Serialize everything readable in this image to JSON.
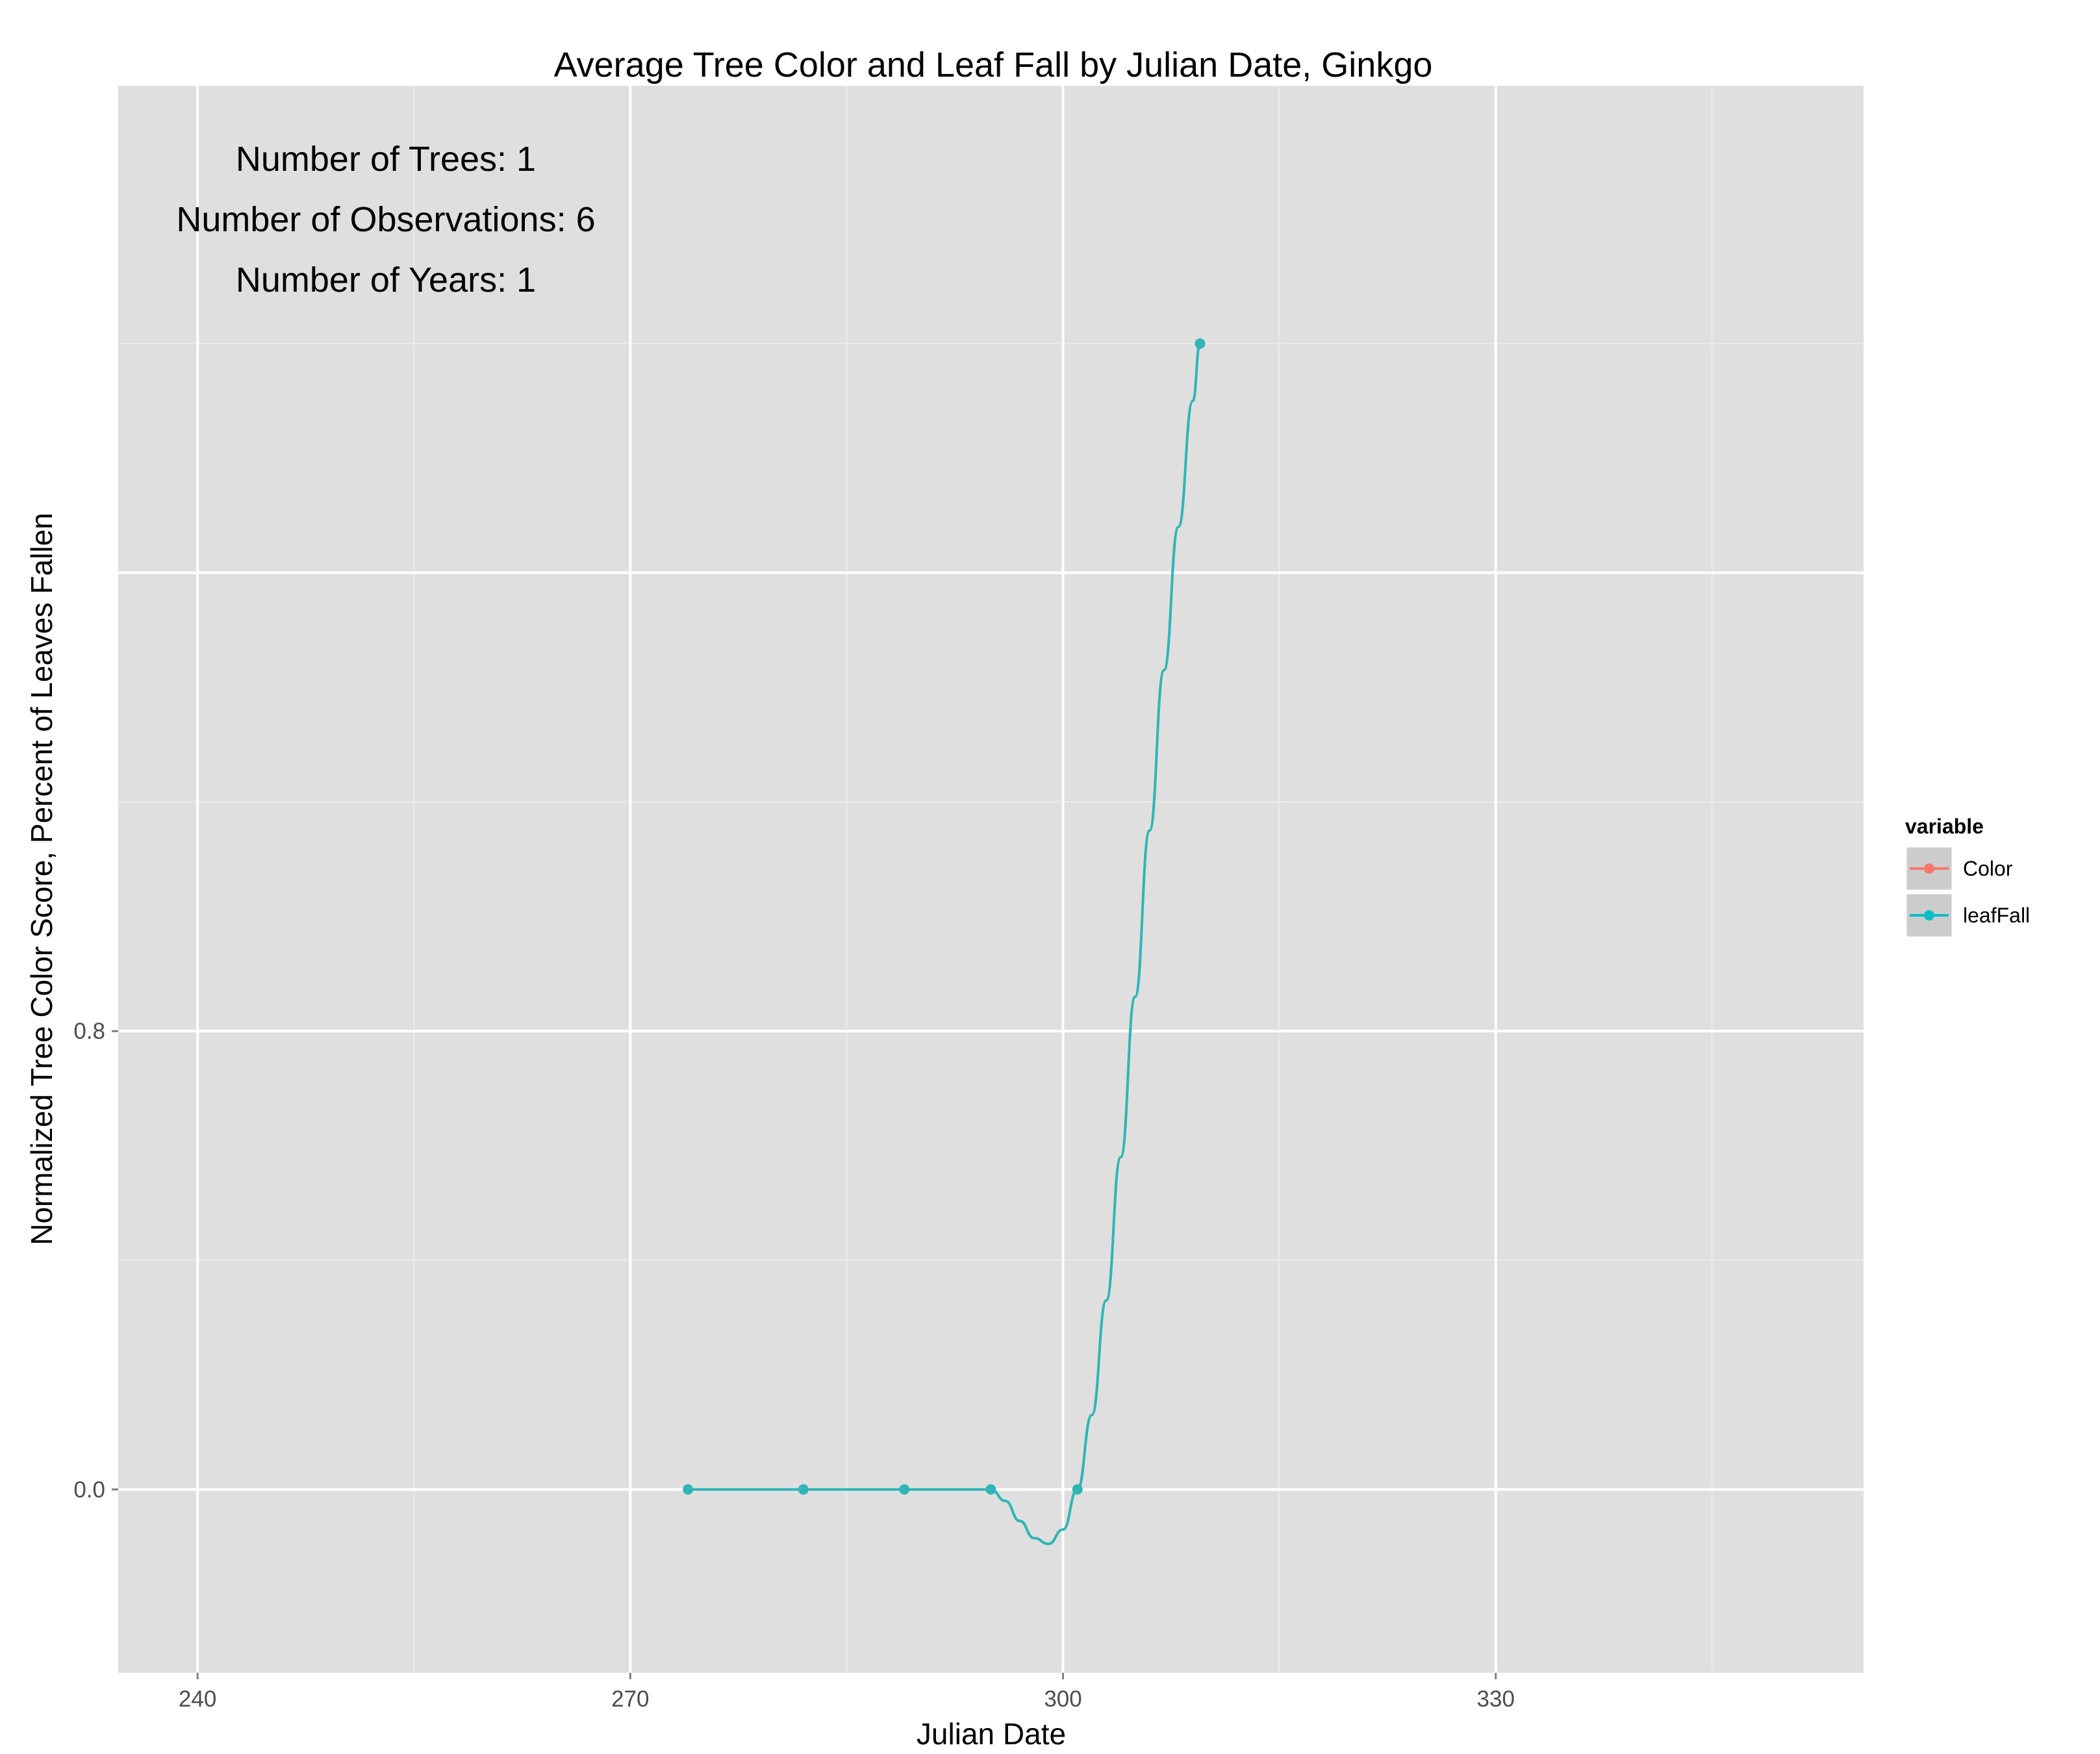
{
  "chart_data": {
    "type": "line",
    "title": "Average Tree Color and Leaf Fall by Julian Date, Ginkgo",
    "xlabel": "Julian Date",
    "ylabel": "Normalized Tree Color Score, Percent of Leaves Fallen",
    "xlim": [
      234.5,
      355.5
    ],
    "ylim": [
      -0.32,
      2.45
    ],
    "x_ticks": [
      240,
      270,
      300,
      330
    ],
    "x_tick_labels": [
      "240",
      "270",
      "300",
      "330"
    ],
    "y_ticks": [
      0.0,
      0.8,
      1.6
    ],
    "y_tick_labels": [
      "0.0",
      "0.8",
      ""
    ],
    "grid": true,
    "legend": {
      "title": "variable",
      "position": "right",
      "entries": [
        {
          "label": "Color",
          "color": "#F8766D"
        },
        {
          "label": "leafFall",
          "color": "#00BFC4"
        }
      ]
    },
    "annotations": [
      "Number of Trees: 1",
      "Number of Observations: 6",
      "Number of Years: 1"
    ],
    "series": [
      {
        "name": "leafFall",
        "color": "#2FB5B5",
        "points": [
          {
            "x": 274,
            "y": 0.0
          },
          {
            "x": 282,
            "y": 0.0
          },
          {
            "x": 289,
            "y": 0.0
          },
          {
            "x": 295,
            "y": 0.0
          },
          {
            "x": 301,
            "y": 0.0
          },
          {
            "x": 309.5,
            "y": 2.0
          }
        ],
        "smooth_curve": [
          [
            274,
            0
          ],
          [
            282,
            0
          ],
          [
            289,
            0
          ],
          [
            295,
            0
          ],
          [
            296,
            -0.02
          ],
          [
            297,
            -0.055
          ],
          [
            298,
            -0.085
          ],
          [
            299,
            -0.095
          ],
          [
            300,
            -0.07
          ],
          [
            301,
            0
          ],
          [
            302,
            0.13
          ],
          [
            303,
            0.33
          ],
          [
            304,
            0.58
          ],
          [
            305,
            0.86
          ],
          [
            306,
            1.15
          ],
          [
            307,
            1.43
          ],
          [
            308,
            1.68
          ],
          [
            309,
            1.9
          ],
          [
            309.5,
            2.0
          ]
        ]
      },
      {
        "name": "Color",
        "color": "#F8766D",
        "points": []
      }
    ]
  }
}
